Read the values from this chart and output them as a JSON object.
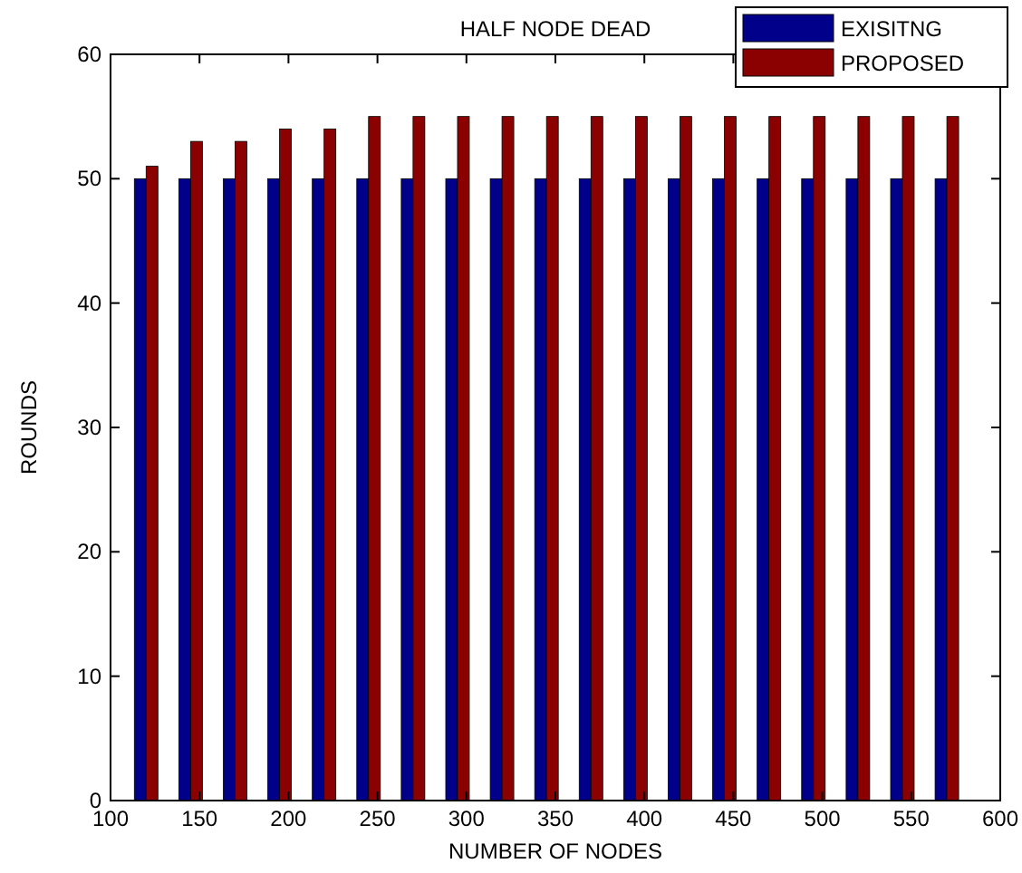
{
  "chart_data": {
    "type": "bar",
    "title": "HALF NODE DEAD",
    "xlabel": "NUMBER OF NODES",
    "ylabel": "ROUNDS",
    "x": [
      120,
      145,
      170,
      195,
      220,
      245,
      270,
      295,
      320,
      345,
      370,
      395,
      420,
      445,
      470,
      495,
      520,
      545,
      570
    ],
    "series": [
      {
        "name": "EXISITNG",
        "color": "#00008b",
        "values": [
          50,
          50,
          50,
          50,
          50,
          50,
          50,
          50,
          50,
          50,
          50,
          50,
          50,
          50,
          50,
          50,
          50,
          50,
          50
        ]
      },
      {
        "name": "PROPOSED",
        "color": "#8b0000",
        "values": [
          51,
          53,
          53,
          54,
          54,
          55,
          55,
          55,
          55,
          55,
          55,
          55,
          55,
          55,
          55,
          55,
          55,
          55,
          55
        ]
      }
    ],
    "xlim": [
      100,
      600
    ],
    "xticks": [
      100,
      150,
      200,
      250,
      300,
      350,
      400,
      450,
      500,
      550,
      600
    ],
    "ylim": [
      0,
      60
    ],
    "yticks": [
      0,
      10,
      20,
      30,
      40,
      50,
      60
    ],
    "grid": false,
    "legend": "top right"
  }
}
